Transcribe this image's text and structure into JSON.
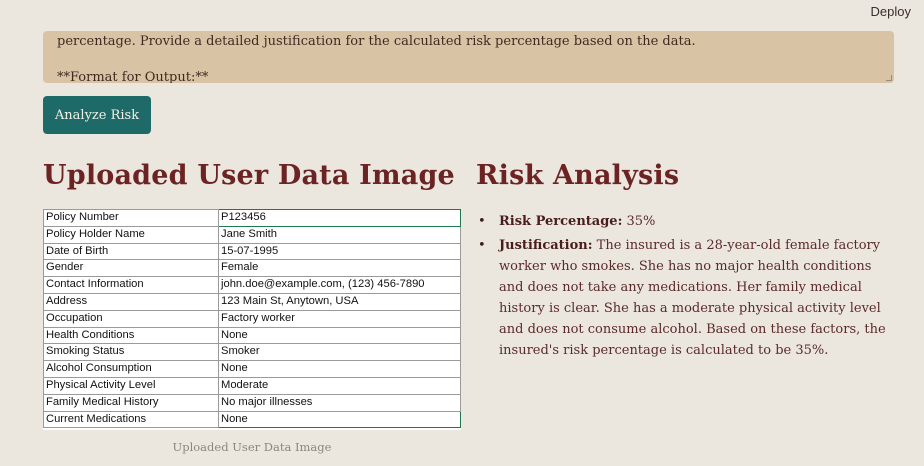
{
  "header": {
    "deploy_label": "Deploy"
  },
  "prompt": {
    "line1": "percentage. Provide a detailed justification for the calculated risk percentage based on the data.",
    "line2": "**Format for Output:**"
  },
  "analyze_button": {
    "label": "Analyze Risk"
  },
  "left": {
    "title": "Uploaded User Data Image",
    "caption": "Uploaded User Data Image",
    "rows": [
      {
        "k": "Policy Number",
        "v": "P123456"
      },
      {
        "k": "Policy Holder Name",
        "v": "Jane Smith"
      },
      {
        "k": "Date of Birth",
        "v": "15-07-1995"
      },
      {
        "k": "Gender",
        "v": "Female"
      },
      {
        "k": "Contact Information",
        "v": "john.doe@example.com, (123) 456-7890"
      },
      {
        "k": "Address",
        "v": "123 Main St, Anytown, USA"
      },
      {
        "k": "Occupation",
        "v": "Factory worker"
      },
      {
        "k": "Health Conditions",
        "v": "None"
      },
      {
        "k": "Smoking Status",
        "v": "Smoker"
      },
      {
        "k": "Alcohol Consumption",
        "v": "None"
      },
      {
        "k": "Physical Activity Level",
        "v": "Moderate"
      },
      {
        "k": "Family Medical History",
        "v": "No major illnesses"
      },
      {
        "k": "Current Medications",
        "v": "None"
      }
    ]
  },
  "right": {
    "title": "Risk Analysis",
    "risk_label": "Risk Percentage:",
    "risk_value": " 35%",
    "justification_label": "Justification:",
    "justification_text": " The insured is a 28-year-old female factory worker who smokes. She has no major health conditions and does not take any medications. Her family medical history is clear. She has a moderate physical activity level and does not consume alcohol. Based on these factors, the insured's risk percentage is calculated to be 35%."
  }
}
